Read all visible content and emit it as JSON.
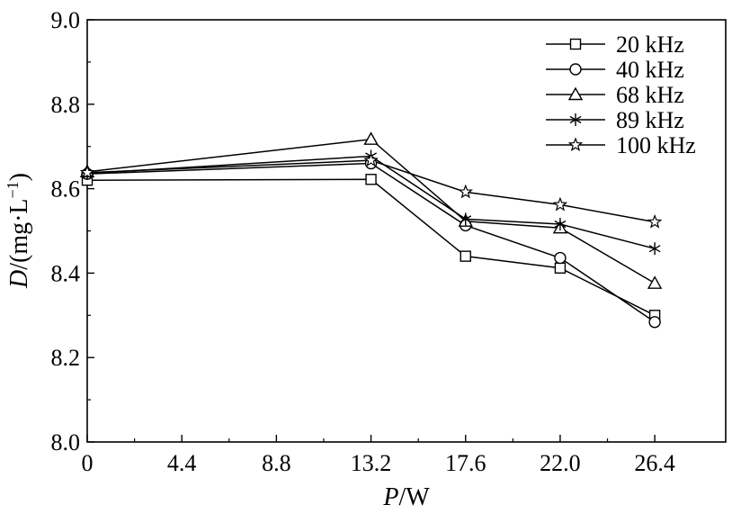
{
  "chart_data": {
    "type": "line",
    "x": [
      0,
      13.2,
      17.6,
      22.0,
      26.4
    ],
    "xticks": [
      "0",
      "4.4",
      "8.8",
      "13.2",
      "17.6",
      "22.0",
      "26.4"
    ],
    "xtick_values": [
      0,
      4.4,
      8.8,
      13.2,
      17.6,
      22.0,
      26.4
    ],
    "yticks": [
      "8.0",
      "8.2",
      "8.4",
      "8.6",
      "8.8",
      "9.0"
    ],
    "ytick_values": [
      8.0,
      8.2,
      8.4,
      8.6,
      8.8,
      9.0
    ],
    "xlim": [
      0,
      29.7
    ],
    "ylim": [
      8.0,
      9.0
    ],
    "xlabel_italic": "P",
    "xlabel_rest": "/W",
    "ylabel_italic": "D",
    "ylabel_rest": "/(mg·L",
    "ylabel_sup": "−1",
    "ylabel_close": ")",
    "legend_position": "top-right",
    "grid": false,
    "series": [
      {
        "name": "20 kHz",
        "marker": "square",
        "values": [
          8.62,
          8.622,
          8.44,
          8.412,
          8.3
        ]
      },
      {
        "name": "40 kHz",
        "marker": "circle",
        "values": [
          8.635,
          8.66,
          8.513,
          8.436,
          8.284
        ]
      },
      {
        "name": "68 kHz",
        "marker": "triangle",
        "values": [
          8.64,
          8.717,
          8.523,
          8.507,
          8.376
        ]
      },
      {
        "name": "89 kHz",
        "marker": "asterisk",
        "values": [
          8.636,
          8.677,
          8.528,
          8.516,
          8.458
        ]
      },
      {
        "name": "100 kHz",
        "marker": "star",
        "values": [
          8.638,
          8.667,
          8.592,
          8.562,
          8.521
        ]
      }
    ]
  }
}
